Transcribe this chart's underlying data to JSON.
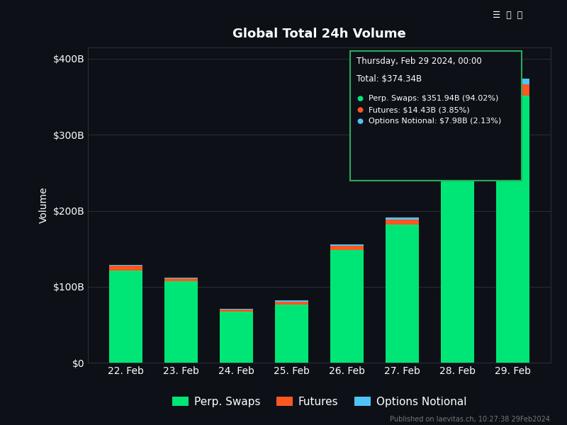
{
  "title": "Global Total 24h Volume",
  "background_color": "#0d1117",
  "grid_color": "#2a2e35",
  "text_color": "#ffffff",
  "ylabel": "Volume",
  "categories": [
    "22. Feb",
    "23. Feb",
    "24. Feb",
    "25. Feb",
    "26. Feb",
    "27. Feb",
    "28. Feb",
    "29. Feb"
  ],
  "perp_swaps": [
    121,
    107,
    67,
    77,
    148,
    182,
    252,
    351.94
  ],
  "futures": [
    6.5,
    4.0,
    3.0,
    3.5,
    6.0,
    6.5,
    18.0,
    14.43
  ],
  "options_notional": [
    1.5,
    1.2,
    1.0,
    1.2,
    2.0,
    2.5,
    9.0,
    7.98
  ],
  "perp_color": "#00e676",
  "futures_color": "#ff5722",
  "options_color": "#4fc3f7",
  "yticks": [
    0,
    100,
    200,
    300,
    400
  ],
  "ytick_labels": [
    "$0",
    "$100B",
    "$200B",
    "$300B",
    "$400B"
  ],
  "ylim": [
    0,
    415
  ],
  "tooltip_title": "Thursday, Feb 29 2024, 00:00",
  "tooltip_total": "Total: $374.34B",
  "tooltip_lines": [
    {
      "color": "#00e676",
      "text": "Perp. Swaps: $351.94B (94.02%)"
    },
    {
      "color": "#ff5722",
      "text": "Futures: $14.43B (3.85%)"
    },
    {
      "color": "#4fc3f7",
      "text": "Options Notional: $7.98B (2.13%)"
    }
  ],
  "legend_labels": [
    "Perp. Swaps",
    "Futures",
    "Options Notional"
  ],
  "legend_colors": [
    "#00e676",
    "#ff5722",
    "#4fc3f7"
  ],
  "footer_text": "Published on laevitas.ch, 10:27:38 29Feb2024",
  "title_fontsize": 13,
  "tick_fontsize": 10,
  "legend_fontsize": 11
}
